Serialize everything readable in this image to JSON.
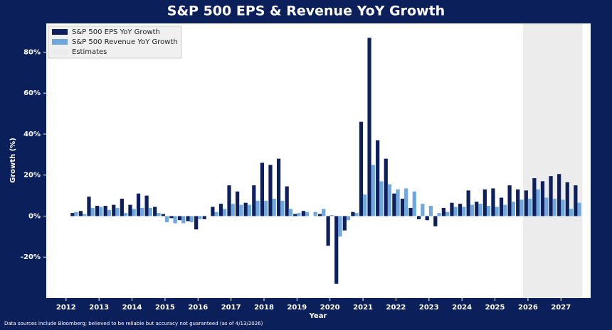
{
  "chart_data": {
    "type": "bar",
    "title": "S&P 500 EPS & Revenue YoY Growth",
    "x_label": "Year",
    "y_label": "Growth (%)",
    "footnote": "Data sources include Bloomberg; believed to be reliable but accuracy not guaranteed (as of 4/13/2026)",
    "x": [
      2012.25,
      2012.5,
      2012.75,
      2013,
      2013.25,
      2013.5,
      2013.75,
      2014,
      2014.25,
      2014.5,
      2014.75,
      2015,
      2015.25,
      2015.5,
      2015.75,
      2016,
      2016.25,
      2016.5,
      2016.75,
      2017,
      2017.25,
      2017.5,
      2017.75,
      2018,
      2018.25,
      2018.5,
      2018.75,
      2019,
      2019.25,
      2019.5,
      2019.75,
      2020,
      2020.25,
      2020.5,
      2020.75,
      2021,
      2021.25,
      2021.5,
      2021.75,
      2022,
      2022.25,
      2022.5,
      2022.75,
      2023,
      2023.25,
      2023.5,
      2023.75,
      2024,
      2024.25,
      2024.5,
      2024.75,
      2025,
      2025.25,
      2025.5,
      2025.75,
      2026,
      2026.25,
      2026.5,
      2026.75,
      2027,
      2027.25,
      2027.5
    ],
    "series": [
      {
        "name": "S&P 500 EPS YoY Growth",
        "color": "#0d1f5c",
        "values": [
          1.5,
          2.5,
          9.5,
          5,
          5,
          5.5,
          8.5,
          5.5,
          11,
          10,
          4.5,
          1,
          -1,
          -2,
          -2.5,
          -6.5,
          -1.5,
          4.5,
          6,
          15,
          12,
          6.5,
          15,
          26,
          25,
          28,
          14.5,
          1,
          2.5,
          0,
          1,
          -14.5,
          -33,
          -7,
          2,
          46,
          87,
          37,
          28,
          11,
          8.5,
          4,
          -1.5,
          -2,
          -5,
          4,
          6.5,
          6,
          12.5,
          7,
          13,
          13.5,
          9,
          15,
          13,
          12.5,
          18.5,
          17,
          19.5,
          20.5,
          16.5,
          15
        ]
      },
      {
        "name": "S&P 500 Revenue YoY Growth",
        "color": "#6fa8dc",
        "values": [
          2,
          1,
          4,
          4.5,
          3,
          4,
          1.5,
          3.5,
          4,
          4,
          1.5,
          -3,
          -3.5,
          -3.5,
          -3,
          -1.5,
          0,
          2,
          3.5,
          6,
          5.5,
          5.5,
          7.5,
          7.5,
          8.5,
          7.5,
          3.5,
          1.5,
          2,
          2,
          3.5,
          0.5,
          -10,
          -2,
          1.5,
          10.5,
          25,
          17,
          15.5,
          13,
          13.5,
          12,
          6,
          5,
          1.5,
          2,
          4.5,
          4.5,
          5.5,
          6,
          5,
          4.5,
          5.5,
          7,
          8,
          8.5,
          13,
          9,
          8.5,
          8,
          3.5,
          6.5
        ]
      }
    ],
    "estimates": {
      "name": "Estimates",
      "color": "#ececec",
      "range": [
        2025.85,
        2027.65
      ]
    },
    "xlim": [
      2011.4,
      2027.9
    ],
    "xticks": [
      2012,
      2013,
      2014,
      2015,
      2016,
      2017,
      2018,
      2019,
      2020,
      2021,
      2022,
      2023,
      2024,
      2025,
      2026,
      2027
    ],
    "ylim": [
      -40,
      94
    ],
    "yticks": [
      {
        "value": -20,
        "label": "-20%"
      },
      {
        "value": 0,
        "label": "0%"
      },
      {
        "value": 20,
        "label": "20%"
      },
      {
        "value": 40,
        "label": "40%"
      },
      {
        "value": 60,
        "label": "60%"
      },
      {
        "value": 80,
        "label": "80%"
      }
    ],
    "legend": "upper left"
  }
}
